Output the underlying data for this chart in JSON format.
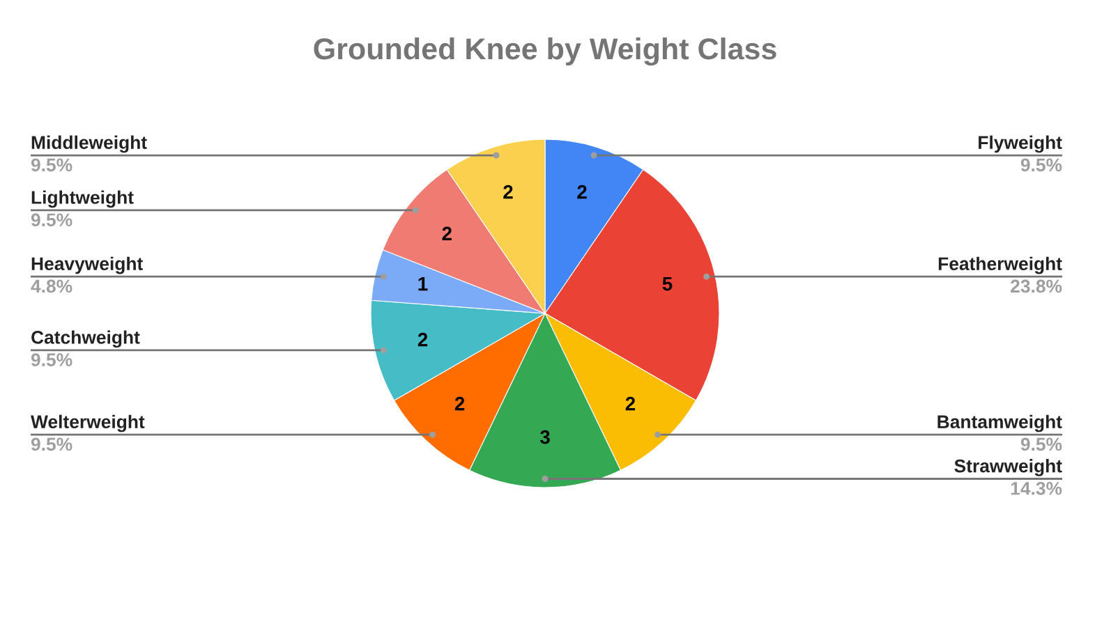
{
  "chart_data": {
    "type": "pie",
    "title": "Grounded Knee by Weight Class",
    "categories": [
      "Flyweight",
      "Featherweight",
      "Bantamweight",
      "Strawweight",
      "Welterweight",
      "Catchweight",
      "Heavyweight",
      "Lightweight",
      "Middleweight"
    ],
    "values": [
      2,
      5,
      2,
      3,
      2,
      2,
      1,
      2,
      2
    ],
    "colors": [
      "#4285f4",
      "#ea4335",
      "#fbbc04",
      "#34a853",
      "#ff6d01",
      "#46bdc6",
      "#7baaf7",
      "#f07b72",
      "#fcd04f"
    ],
    "data_labels": true,
    "annotations": [
      "9.5%",
      "23.8%",
      "9.5%",
      "14.3%",
      "9.5%",
      "9.5%",
      "4.8%",
      "9.5%",
      "9.5%"
    ]
  }
}
